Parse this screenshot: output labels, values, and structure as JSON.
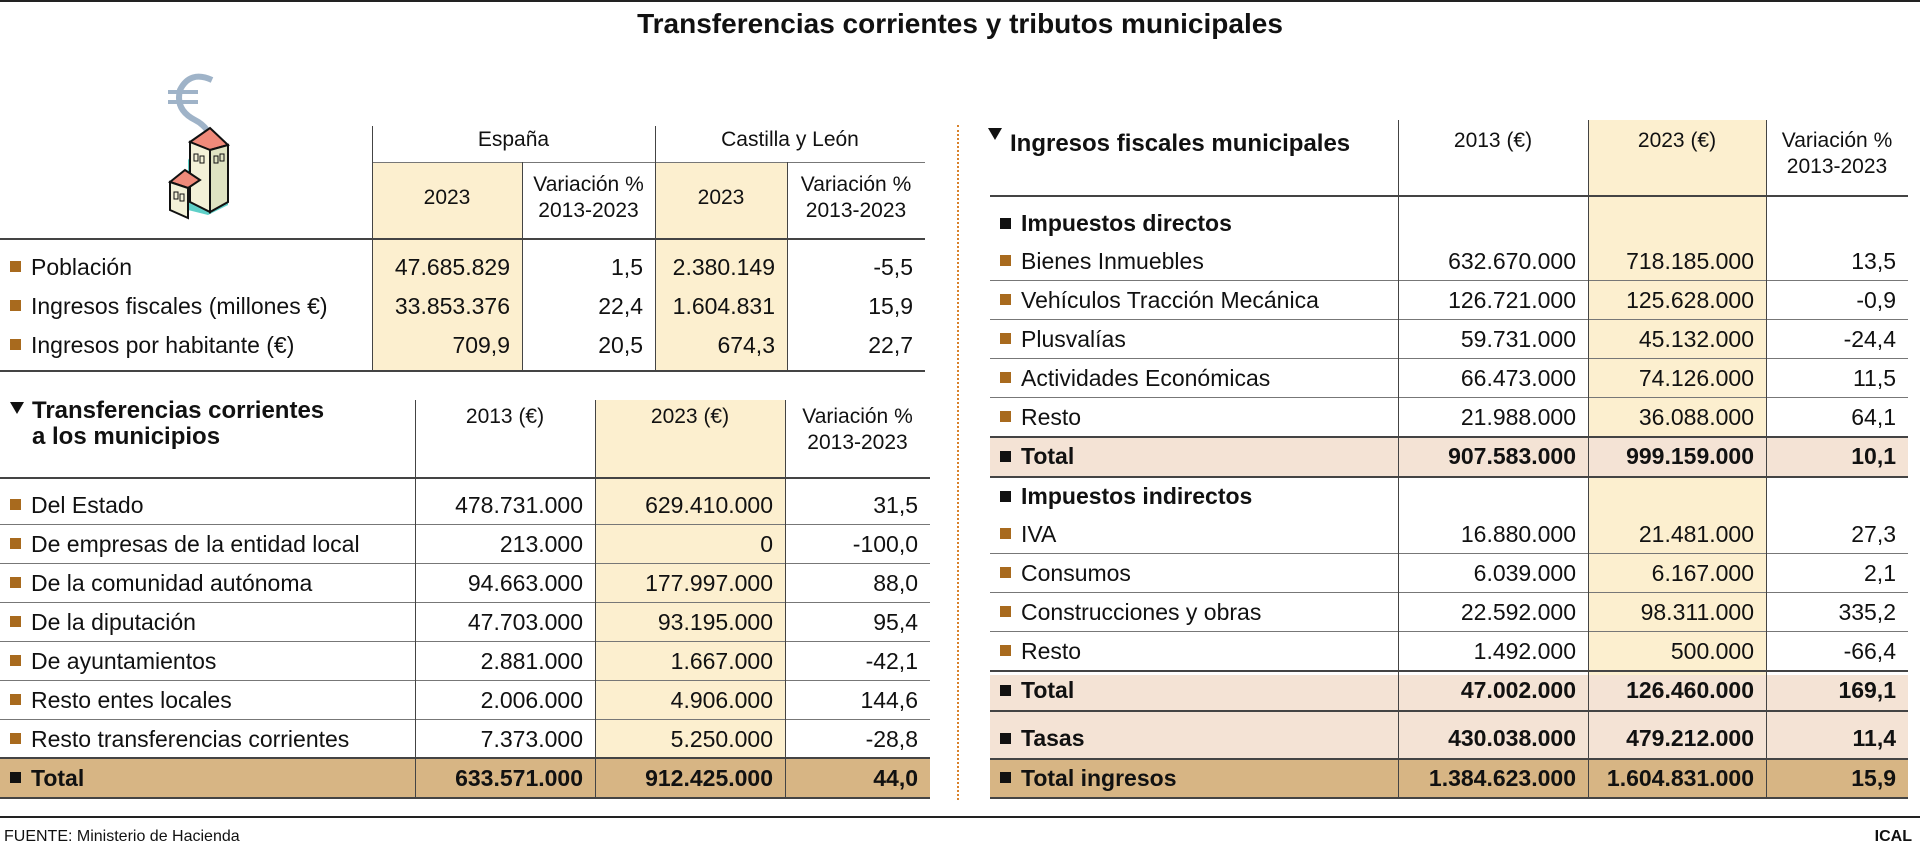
{
  "title": "Transferencias corrientes y tributos municipales",
  "colors": {
    "cream": "#fcefcf",
    "pink": "#f4e3d5",
    "tan": "#d7b584",
    "bullet": "#a86a1e"
  },
  "icon": "house-with-euro-smoke-icon",
  "summary": {
    "group_headers": [
      "España",
      "Castilla y León"
    ],
    "col_headers": [
      "2023",
      "Variación % 2013-2023",
      "2023",
      "Variación % 2013-2023"
    ],
    "rows": [
      {
        "label": "Población",
        "values": [
          "47.685.829",
          "1,5",
          "2.380.149",
          "-5,5"
        ]
      },
      {
        "label": "Ingresos fiscales (millones €)",
        "values": [
          "33.853.376",
          "22,4",
          "1.604.831",
          "15,9"
        ]
      },
      {
        "label": "Ingresos por habitante (€)",
        "values": [
          "709,9",
          "20,5",
          "674,3",
          "22,7"
        ]
      }
    ]
  },
  "transfers": {
    "title_line1": "Transferencias corrientes",
    "title_line2": "a los municipios",
    "col_headers": [
      "2013 (€)",
      "2023 (€)",
      "Variación % 2013-2023"
    ],
    "rows": [
      {
        "label": "Del Estado",
        "values": [
          "478.731.000",
          "629.410.000",
          "31,5"
        ]
      },
      {
        "label": "De empresas de la entidad local",
        "values": [
          "213.000",
          "0",
          "-100,0"
        ]
      },
      {
        "label": "De la comunidad autónoma",
        "values": [
          "94.663.000",
          "177.997.000",
          "88,0"
        ]
      },
      {
        "label": "De la diputación",
        "values": [
          "47.703.000",
          "93.195.000",
          "95,4"
        ]
      },
      {
        "label": "De ayuntamientos",
        "values": [
          "2.881.000",
          "1.667.000",
          "-42,1"
        ]
      },
      {
        "label": "Resto entes locales",
        "values": [
          "2.006.000",
          "4.906.000",
          "144,6"
        ]
      },
      {
        "label": "Resto transferencias corrientes",
        "values": [
          "7.373.000",
          "5.250.000",
          "-28,8"
        ]
      }
    ],
    "total": {
      "label": "Total",
      "values": [
        "633.571.000",
        "912.425.000",
        "44,0"
      ]
    }
  },
  "fiscal": {
    "title": "Ingresos fiscales municipales",
    "col_headers": [
      "2013 (€)",
      "2023 (€)",
      "Variación % 2013-2023"
    ],
    "direct": {
      "label": "Impuestos directos",
      "rows": [
        {
          "label": "Bienes Inmuebles",
          "values": [
            "632.670.000",
            "718.185.000",
            "13,5"
          ]
        },
        {
          "label": "Vehículos Tracción Mecánica",
          "values": [
            "126.721.000",
            "125.628.000",
            "-0,9"
          ]
        },
        {
          "label": "Plusvalías",
          "values": [
            "59.731.000",
            "45.132.000",
            "-24,4"
          ]
        },
        {
          "label": "Actividades Económicas",
          "values": [
            "66.473.000",
            "74.126.000",
            "11,5"
          ]
        },
        {
          "label": "Resto",
          "values": [
            "21.988.000",
            "36.088.000",
            "64,1"
          ]
        }
      ],
      "total": {
        "label": "Total",
        "values": [
          "907.583.000",
          "999.159.000",
          "10,1"
        ]
      }
    },
    "indirect": {
      "label": "Impuestos indirectos",
      "rows": [
        {
          "label": "IVA",
          "values": [
            "16.880.000",
            "21.481.000",
            "27,3"
          ]
        },
        {
          "label": "Consumos",
          "values": [
            "6.039.000",
            "6.167.000",
            "2,1"
          ]
        },
        {
          "label": "Construcciones y obras",
          "values": [
            "22.592.000",
            "98.311.000",
            "335,2"
          ]
        },
        {
          "label": "Resto",
          "values": [
            "1.492.000",
            "500.000",
            "-66,4"
          ]
        }
      ],
      "total": {
        "label": "Total",
        "values": [
          "47.002.000",
          "126.460.000",
          "169,1"
        ]
      }
    },
    "tasas": {
      "label": "Tasas",
      "values": [
        "430.038.000",
        "479.212.000",
        "11,4"
      ]
    },
    "grand_total": {
      "label": "Total ingresos",
      "values": [
        "1.384.623.000",
        "1.604.831.000",
        "15,9"
      ]
    }
  },
  "footer": {
    "source": "FUENTE: Ministerio de Hacienda",
    "credit": "ICAL"
  }
}
